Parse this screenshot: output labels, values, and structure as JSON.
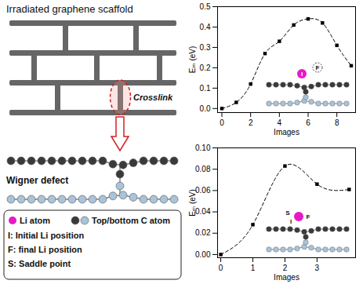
{
  "chart_data": [
    {
      "type": "line",
      "x_label": "Images",
      "y_label": "Eₘ (eV)",
      "x": [
        0,
        1,
        2,
        3,
        4,
        5,
        6,
        7,
        8,
        9
      ],
      "values": [
        0.0,
        0.03,
        0.12,
        0.27,
        0.33,
        0.41,
        0.44,
        0.42,
        0.31,
        0.21
      ],
      "color": "#000000",
      "marker": "square",
      "line_style": "dashed",
      "xlim": [
        -0.3,
        9.3
      ],
      "xticks": [
        0,
        2,
        4,
        6,
        8
      ],
      "ylim": [
        -0.02,
        0.5
      ],
      "yticks": [
        {
          "value": 0,
          "label": "0.0"
        },
        0.1,
        0.2,
        0.3,
        0.4,
        0.5
      ],
      "annotations": [
        "I",
        "F"
      ]
    },
    {
      "type": "line",
      "x_label": "Images",
      "y_label": "Eₘ (eV)",
      "x": [
        0,
        1,
        2,
        3,
        4
      ],
      "values": [
        0.0,
        0.028,
        0.083,
        0.066,
        0.061
      ],
      "color": "#000000",
      "marker": "square",
      "line_style": "dashed",
      "xlim": [
        -0.1,
        4.2
      ],
      "xticks": [
        0,
        1,
        2,
        3
      ],
      "ylim": [
        -0.003,
        0.1
      ],
      "yticks": [
        {
          "value": 0,
          "label": "0.00"
        },
        {
          "value": 0.02,
          "label": "0.02"
        },
        {
          "value": 0.04,
          "label": "0.04"
        },
        {
          "value": 0.06,
          "label": "0.06"
        },
        {
          "value": 0.08,
          "label": "0.08"
        },
        {
          "value": 0.1,
          "label": "0.10"
        }
      ],
      "annotations": [
        "S",
        "I",
        "F"
      ]
    }
  ],
  "diagram": {
    "title": "Irradiated graphene scaffold",
    "crosslink_label": "Crosslink",
    "defect_label": "Wigner defect",
    "legend": [
      {
        "label": "Li atom",
        "color": "#e619c8"
      },
      {
        "label": "Top/bottom C atom",
        "colors": [
          "#3a3a3a",
          "#a9c3d9"
        ]
      },
      {
        "label": "I: Initial Li position"
      },
      {
        "label": "F: final Li position"
      },
      {
        "label": "S: Saddle point"
      }
    ]
  }
}
